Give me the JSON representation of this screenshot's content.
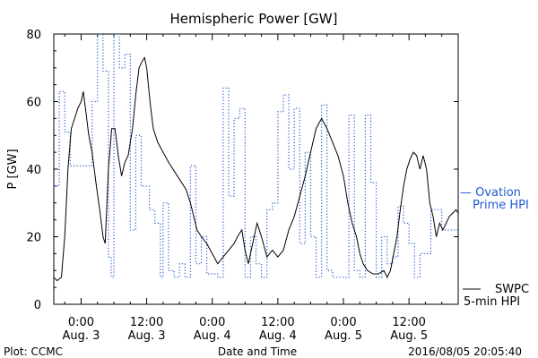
{
  "chart_data": {
    "type": "line",
    "title": "Hemispheric Power [GW]",
    "xlabel": "Date and Time",
    "ylabel": "P [GW]",
    "ylim": [
      0,
      80
    ],
    "xlim_hours": [
      -5,
      69
    ],
    "y_ticks": [
      0,
      20,
      40,
      60,
      80
    ],
    "x_ticks": [
      {
        "hour": 0,
        "time": "0:00",
        "date": "Aug. 3"
      },
      {
        "hour": 12,
        "time": "12:00",
        "date": "Aug. 3"
      },
      {
        "hour": 24,
        "time": "0:00",
        "date": "Aug. 4"
      },
      {
        "hour": 36,
        "time": "12:00",
        "date": "Aug. 4"
      },
      {
        "hour": 48,
        "time": "0:00",
        "date": "Aug. 5"
      },
      {
        "hour": 60,
        "time": "12:00",
        "date": "Aug. 5"
      }
    ],
    "grid": false,
    "legend_position": "right",
    "series": [
      {
        "name": "SWPC 5-min HPI",
        "label_lines": [
          "SWPC",
          "5-min HPI"
        ],
        "color": "#000000",
        "style": "solid",
        "points": [
          [
            -5.0,
            8
          ],
          [
            -4.4,
            7
          ],
          [
            -3.6,
            8
          ],
          [
            -3.0,
            20
          ],
          [
            -2.4,
            40
          ],
          [
            -1.8,
            52
          ],
          [
            -1.2,
            55
          ],
          [
            -0.6,
            58
          ],
          [
            0.0,
            60
          ],
          [
            0.4,
            63
          ],
          [
            0.8,
            58
          ],
          [
            1.4,
            50
          ],
          [
            2.0,
            45
          ],
          [
            2.8,
            35
          ],
          [
            3.4,
            28
          ],
          [
            4.0,
            20
          ],
          [
            4.4,
            18
          ],
          [
            5.0,
            40
          ],
          [
            5.6,
            52
          ],
          [
            6.2,
            52
          ],
          [
            6.8,
            44
          ],
          [
            7.4,
            38
          ],
          [
            8.0,
            42
          ],
          [
            8.6,
            44
          ],
          [
            9.4,
            52
          ],
          [
            10.0,
            62
          ],
          [
            10.6,
            70
          ],
          [
            11.2,
            72
          ],
          [
            11.6,
            73
          ],
          [
            12.0,
            70
          ],
          [
            12.6,
            60
          ],
          [
            13.2,
            52
          ],
          [
            14.0,
            48
          ],
          [
            16.0,
            42
          ],
          [
            18.0,
            37
          ],
          [
            19.2,
            34
          ],
          [
            20.0,
            30
          ],
          [
            20.6,
            26
          ],
          [
            21.2,
            22
          ],
          [
            22.0,
            20
          ],
          [
            23.0,
            18
          ],
          [
            24.0,
            15
          ],
          [
            25.0,
            12
          ],
          [
            26.0,
            14
          ],
          [
            27.0,
            16
          ],
          [
            28.0,
            18
          ],
          [
            28.6,
            20
          ],
          [
            29.4,
            22
          ],
          [
            30.0,
            16
          ],
          [
            30.6,
            12
          ],
          [
            31.4,
            18
          ],
          [
            32.2,
            24
          ],
          [
            33.0,
            20
          ],
          [
            34.0,
            14
          ],
          [
            35.0,
            16
          ],
          [
            36.0,
            14
          ],
          [
            37.0,
            16
          ],
          [
            38.0,
            22
          ],
          [
            39.0,
            26
          ],
          [
            40.0,
            32
          ],
          [
            41.0,
            38
          ],
          [
            42.0,
            45
          ],
          [
            43.0,
            52
          ],
          [
            44.0,
            55
          ],
          [
            45.0,
            52
          ],
          [
            46.0,
            48
          ],
          [
            47.0,
            44
          ],
          [
            48.0,
            38
          ],
          [
            48.8,
            30
          ],
          [
            49.6,
            24
          ],
          [
            50.4,
            20
          ],
          [
            51.0,
            15
          ],
          [
            51.6,
            12
          ],
          [
            52.4,
            10
          ],
          [
            53.4,
            9
          ],
          [
            54.4,
            9
          ],
          [
            55.4,
            10
          ],
          [
            56.0,
            8
          ],
          [
            56.6,
            10
          ],
          [
            57.2,
            15
          ],
          [
            57.8,
            20
          ],
          [
            58.4,
            28
          ],
          [
            59.0,
            35
          ],
          [
            59.6,
            40
          ],
          [
            60.2,
            43
          ],
          [
            60.8,
            45
          ],
          [
            61.4,
            44
          ],
          [
            62.0,
            40
          ],
          [
            62.6,
            44
          ],
          [
            63.2,
            40
          ],
          [
            63.8,
            30
          ],
          [
            64.4,
            26
          ],
          [
            65.0,
            20
          ],
          [
            65.6,
            24
          ],
          [
            66.2,
            22
          ],
          [
            66.8,
            24
          ],
          [
            67.4,
            26
          ],
          [
            68.0,
            27
          ],
          [
            68.6,
            28
          ],
          [
            69.0,
            27
          ]
        ]
      },
      {
        "name": "Ovation Prime HPI",
        "label_lines": [
          "— Ovation",
          "Prime HPI"
        ],
        "color": "#1f5bd0",
        "style": "dotted-step",
        "points": [
          [
            -5.0,
            35
          ],
          [
            -4.0,
            63
          ],
          [
            -3.0,
            51
          ],
          [
            -2.0,
            41
          ],
          [
            1.5,
            41
          ],
          [
            2.0,
            60
          ],
          [
            3.0,
            80
          ],
          [
            4.0,
            69
          ],
          [
            5.0,
            14
          ],
          [
            5.5,
            8
          ],
          [
            6.0,
            80
          ],
          [
            7.0,
            70
          ],
          [
            8.0,
            74
          ],
          [
            9.0,
            22
          ],
          [
            10.0,
            50
          ],
          [
            11.0,
            35
          ],
          [
            12.5,
            28
          ],
          [
            13.5,
            24
          ],
          [
            14.5,
            8
          ],
          [
            15.0,
            30
          ],
          [
            16.0,
            10
          ],
          [
            17.0,
            8
          ],
          [
            18.0,
            12
          ],
          [
            19.0,
            8
          ],
          [
            20.0,
            41
          ],
          [
            21.0,
            12
          ],
          [
            22.0,
            20
          ],
          [
            23.0,
            9
          ],
          [
            25.0,
            8
          ],
          [
            26.0,
            64
          ],
          [
            27.0,
            32
          ],
          [
            28.0,
            55
          ],
          [
            29.0,
            58
          ],
          [
            30.0,
            8
          ],
          [
            31.0,
            20
          ],
          [
            32.0,
            12
          ],
          [
            33.0,
            8
          ],
          [
            34.0,
            28
          ],
          [
            35.0,
            30
          ],
          [
            36.0,
            57
          ],
          [
            37.0,
            62
          ],
          [
            38.0,
            40
          ],
          [
            39.0,
            58
          ],
          [
            40.0,
            18
          ],
          [
            41.0,
            45
          ],
          [
            42.0,
            20
          ],
          [
            43.0,
            8
          ],
          [
            44.0,
            59
          ],
          [
            45.0,
            10
          ],
          [
            46.0,
            8
          ],
          [
            49.0,
            56
          ],
          [
            50.0,
            10
          ],
          [
            51.0,
            8
          ],
          [
            52.0,
            56
          ],
          [
            53.0,
            36
          ],
          [
            54.0,
            8
          ],
          [
            55.0,
            20
          ],
          [
            56.0,
            12
          ],
          [
            57.0,
            14
          ],
          [
            58.0,
            29
          ],
          [
            59.0,
            24
          ],
          [
            60.0,
            18
          ],
          [
            61.0,
            8
          ],
          [
            62.0,
            15
          ],
          [
            64.0,
            28
          ],
          [
            66.0,
            22
          ],
          [
            68.0,
            22
          ],
          [
            69.0,
            22
          ]
        ]
      }
    ]
  },
  "footer": {
    "plot_credit": "Plot: CCMC",
    "timestamp": "2016/08/05 20:05:40"
  }
}
